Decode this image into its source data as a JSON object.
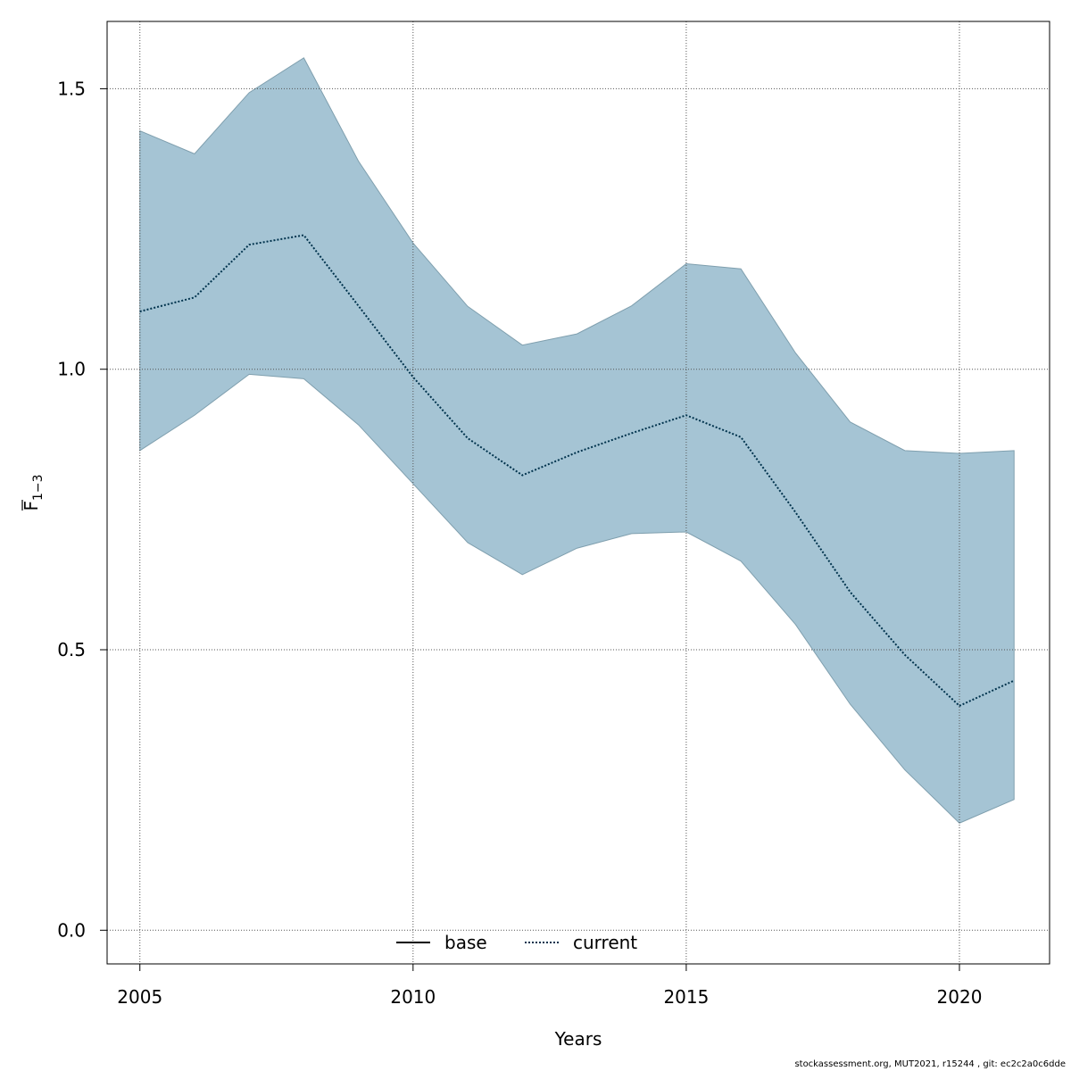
{
  "chart_data": {
    "type": "line",
    "xlabel": "Years",
    "ylabel_main": "F",
    "ylabel_sub": "1−3",
    "xlim": [
      2004.4,
      2021.65
    ],
    "ylim": [
      -0.06,
      1.62
    ],
    "x_ticks": [
      2005,
      2010,
      2015,
      2020
    ],
    "y_ticks": [
      0.0,
      0.5,
      1.0,
      1.5
    ],
    "y_tick_labels": [
      "0.0",
      "0.5",
      "1.0",
      "1.5"
    ],
    "grid": true,
    "legend": {
      "placement": "bottom",
      "entries": [
        {
          "label": "base",
          "style": "solid",
          "color": "#000000"
        },
        {
          "label": "current",
          "style": "dotted",
          "color": "#00334d"
        }
      ]
    },
    "x": [
      2005,
      2006,
      2007,
      2008,
      2009,
      2010,
      2011,
      2012,
      2013,
      2014,
      2015,
      2016,
      2017,
      2018,
      2019,
      2020,
      2021
    ],
    "series": [
      {
        "name": "current",
        "style": "dotted",
        "color": "#00334d",
        "values": [
          1.103,
          1.128,
          1.222,
          1.239,
          1.113,
          0.986,
          0.877,
          0.811,
          0.852,
          0.886,
          0.918,
          0.879,
          0.745,
          0.603,
          0.491,
          0.4,
          0.445
        ]
      }
    ],
    "confidence_band": {
      "series": "current",
      "color": "#a5c4d4",
      "edge_color": "#7f9fae",
      "upper": [
        1.425,
        1.384,
        1.493,
        1.555,
        1.371,
        1.225,
        1.112,
        1.043,
        1.063,
        1.113,
        1.188,
        1.179,
        1.029,
        0.906,
        0.855,
        0.85,
        0.855
      ],
      "lower": [
        0.855,
        0.918,
        0.991,
        0.983,
        0.901,
        0.796,
        0.691,
        0.634,
        0.681,
        0.707,
        0.71,
        0.658,
        0.545,
        0.403,
        0.286,
        0.191,
        0.233
      ]
    }
  },
  "footer": "stockassessment.org, MUT2021, r15244 , git: ec2c2a0c6dde"
}
